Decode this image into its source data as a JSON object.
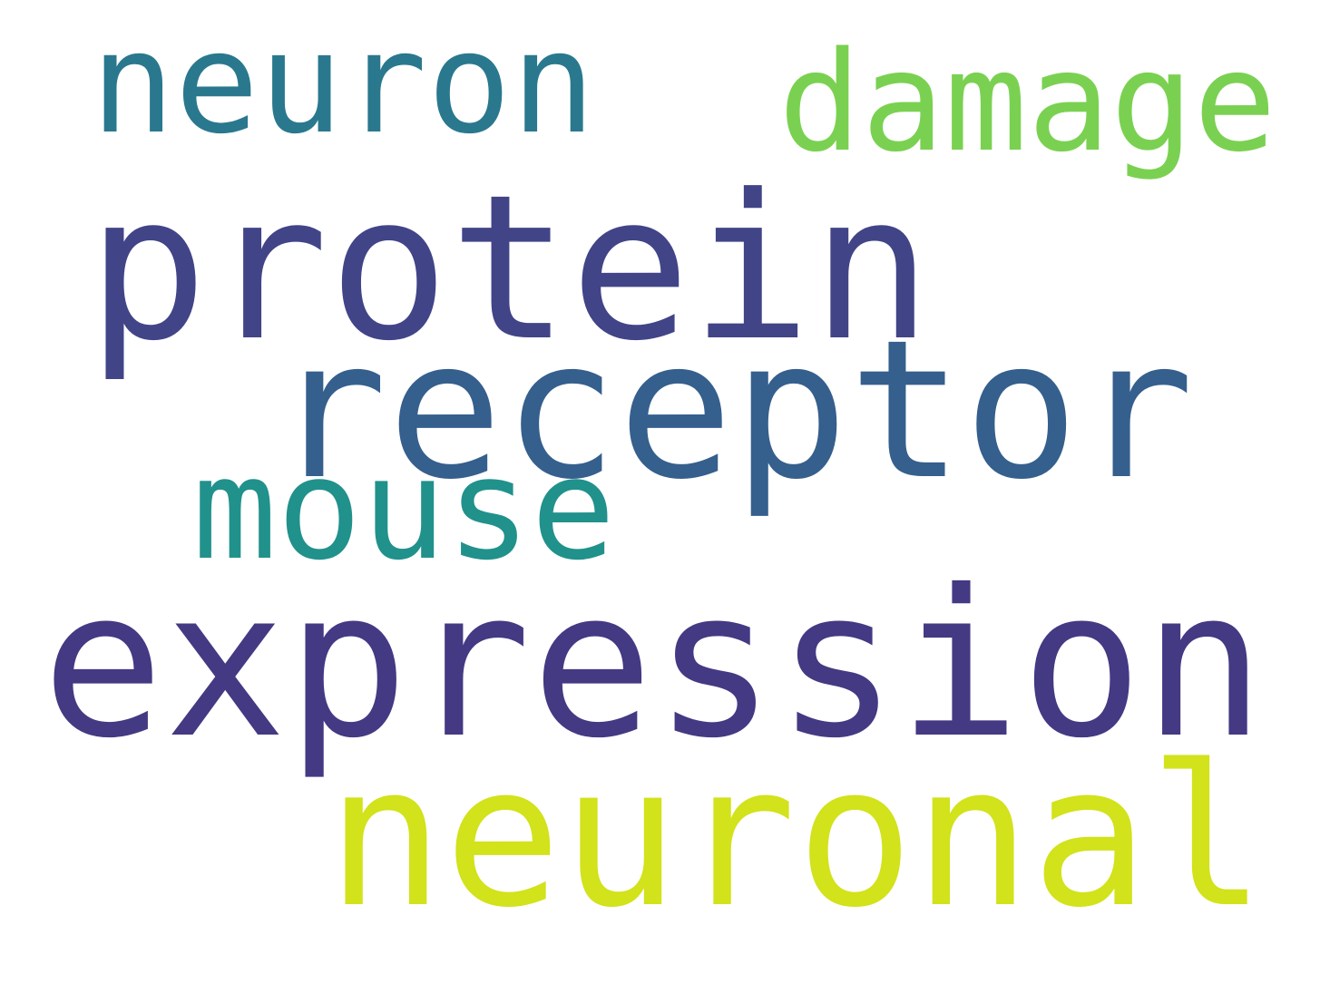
{
  "words": [
    {
      "text": "neuron",
      "color": "#2a788e"
    },
    {
      "text": "damage",
      "color": "#7ad151"
    },
    {
      "text": "protein",
      "color": "#414487"
    },
    {
      "text": "receptor",
      "color": "#355f8d"
    },
    {
      "text": "mouse",
      "color": "#21918c"
    },
    {
      "text": "expression",
      "color": "#443983"
    },
    {
      "text": "neuronal",
      "color": "#d2e21b"
    }
  ]
}
